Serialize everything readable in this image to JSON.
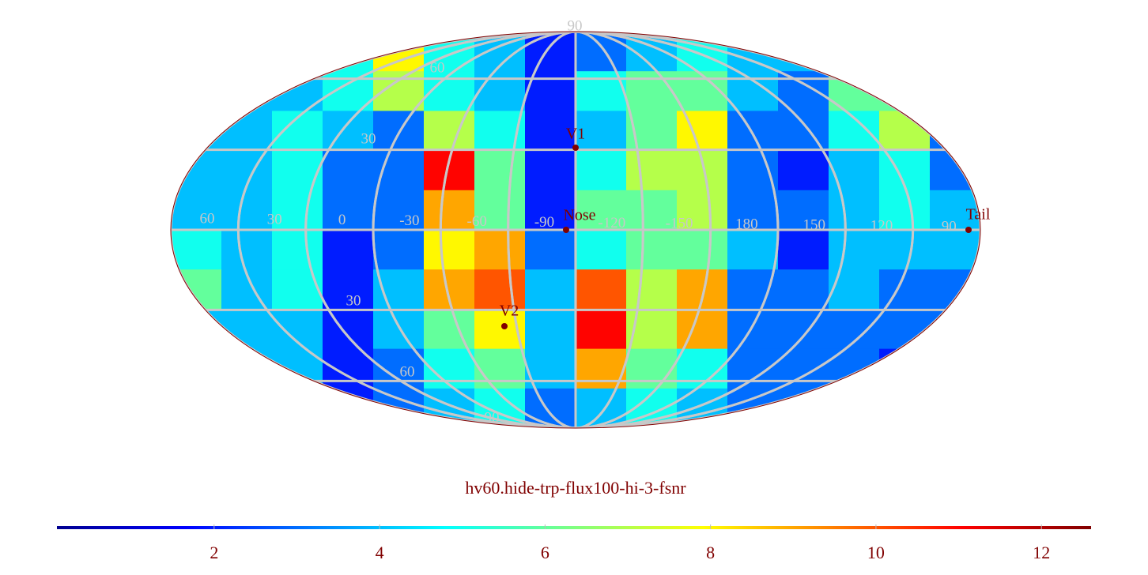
{
  "map": {
    "title": "hv60.hide-trp-flux100-hi-3-fsnr",
    "values": [
      [
        3,
        3,
        4,
        5,
        8,
        5,
        4,
        2,
        3,
        4,
        5,
        4,
        4,
        5,
        4,
        3
      ],
      [
        3,
        4,
        4,
        5,
        7,
        5,
        4,
        2,
        5,
        6,
        6,
        4,
        3,
        6,
        6,
        3
      ],
      [
        4,
        4,
        5,
        4,
        3,
        7,
        5,
        2,
        4,
        6,
        8,
        3,
        3,
        5,
        7,
        3
      ],
      [
        4,
        4,
        5,
        3,
        3,
        11,
        6,
        2,
        5,
        7,
        7,
        3,
        2,
        4,
        5,
        3
      ],
      [
        4,
        4,
        5,
        3,
        3,
        9,
        6,
        2,
        6,
        6,
        7,
        3,
        3,
        4,
        5,
        4
      ],
      [
        5,
        4,
        5,
        2,
        3,
        8,
        9,
        3,
        5,
        6,
        6,
        4,
        2,
        4,
        4,
        4
      ],
      [
        6,
        4,
        5,
        2,
        4,
        9,
        10,
        4,
        10,
        7,
        9,
        3,
        3,
        4,
        3,
        3
      ],
      [
        4,
        4,
        4,
        2,
        4,
        6,
        8,
        4,
        11,
        7,
        9,
        3,
        3,
        3,
        3,
        3
      ],
      [
        3,
        4,
        4,
        2,
        3,
        5,
        6,
        4,
        9,
        6,
        5,
        3,
        3,
        3,
        2,
        2
      ],
      [
        2,
        3,
        3,
        2,
        3,
        4,
        5,
        3,
        4,
        5,
        4,
        3,
        3,
        3,
        2,
        2
      ]
    ],
    "longitude_labels": [
      "60",
      "30",
      "0",
      "-30",
      "-60",
      "-90",
      "-120",
      "-150",
      "180",
      "150",
      "120",
      "90"
    ],
    "latitude_labels_north": [
      "90",
      "60",
      "30"
    ],
    "latitude_labels_south": [
      "30",
      "60",
      "90"
    ],
    "markers": [
      "V1",
      "Nose",
      "V2",
      "Tail"
    ],
    "colorbar": {
      "lim": [
        0.1,
        12.6
      ],
      "ticks": [
        2,
        4,
        6,
        8,
        10,
        12
      ]
    }
  }
}
